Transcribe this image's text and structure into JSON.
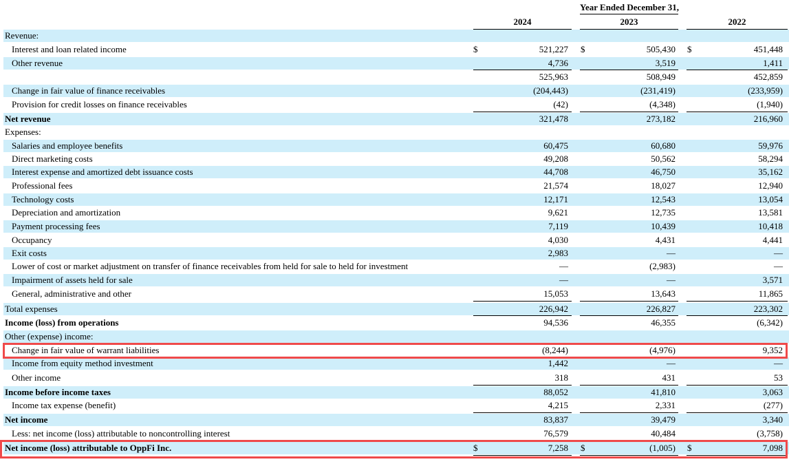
{
  "header": {
    "period_label": "Year Ended December 31,",
    "years": [
      "2024",
      "2023",
      "2022"
    ]
  },
  "currency_symbol": "$",
  "rows": [
    {
      "label": "Revenue:",
      "values": [
        "",
        "",
        ""
      ]
    },
    {
      "label": "Interest and loan related income",
      "values": [
        "521,227",
        "505,430",
        "451,448"
      ]
    },
    {
      "label": "Other revenue",
      "values": [
        "4,736",
        "3,519",
        "1,411"
      ]
    },
    {
      "label": "",
      "values": [
        "525,963",
        "508,949",
        "452,859"
      ]
    },
    {
      "label": "Change in fair value of finance receivables",
      "values": [
        "(204,443)",
        "(231,419)",
        "(233,959)"
      ]
    },
    {
      "label": "Provision for credit losses on finance receivables",
      "values": [
        "(42)",
        "(4,348)",
        "(1,940)"
      ]
    },
    {
      "label": "Net revenue",
      "values": [
        "321,478",
        "273,182",
        "216,960"
      ]
    },
    {
      "label": "Expenses:",
      "values": [
        "",
        "",
        ""
      ]
    },
    {
      "label": "Salaries and employee benefits",
      "values": [
        "60,475",
        "60,680",
        "59,976"
      ]
    },
    {
      "label": "Direct marketing costs",
      "values": [
        "49,208",
        "50,562",
        "58,294"
      ]
    },
    {
      "label": "Interest expense and amortized debt issuance costs",
      "values": [
        "44,708",
        "46,750",
        "35,162"
      ]
    },
    {
      "label": "Professional fees",
      "values": [
        "21,574",
        "18,027",
        "12,940"
      ]
    },
    {
      "label": "Technology costs",
      "values": [
        "12,171",
        "12,543",
        "13,054"
      ]
    },
    {
      "label": "Depreciation and amortization",
      "values": [
        "9,621",
        "12,735",
        "13,581"
      ]
    },
    {
      "label": "Payment processing fees",
      "values": [
        "7,119",
        "10,439",
        "10,418"
      ]
    },
    {
      "label": "Occupancy",
      "values": [
        "4,030",
        "4,431",
        "4,441"
      ]
    },
    {
      "label": "Exit costs",
      "values": [
        "2,983",
        "—",
        "—"
      ]
    },
    {
      "label": "Lower of cost or market adjustment on transfer of finance receivables from held for sale to held for investment",
      "values": [
        "—",
        "(2,983)",
        "—"
      ]
    },
    {
      "label": "Impairment of assets held for sale",
      "values": [
        "—",
        "—",
        "3,571"
      ]
    },
    {
      "label": "General, administrative and other",
      "values": [
        "15,053",
        "13,643",
        "11,865"
      ]
    },
    {
      "label": "Total expenses",
      "values": [
        "226,942",
        "226,827",
        "223,302"
      ]
    },
    {
      "label": "Income (loss) from operations",
      "values": [
        "94,536",
        "46,355",
        "(6,342)"
      ]
    },
    {
      "label": "Other (expense) income:",
      "values": [
        "",
        "",
        ""
      ]
    },
    {
      "label": "Change in fair value of warrant liabilities",
      "values": [
        "(8,244)",
        "(4,976)",
        "9,352"
      ]
    },
    {
      "label": "Income from equity method investment",
      "values": [
        "1,442",
        "—",
        "—"
      ]
    },
    {
      "label": "Other income",
      "values": [
        "318",
        "431",
        "53"
      ]
    },
    {
      "label": "Income before income taxes",
      "values": [
        "88,052",
        "41,810",
        "3,063"
      ]
    },
    {
      "label": "Income tax expense (benefit)",
      "values": [
        "4,215",
        "2,331",
        "(277)"
      ]
    },
    {
      "label": "Net income",
      "values": [
        "83,837",
        "39,479",
        "3,340"
      ]
    },
    {
      "label": "Less: net income (loss) attributable to noncontrolling interest",
      "values": [
        "76,579",
        "40,484",
        "(3,758)"
      ]
    },
    {
      "label": "Net income (loss) attributable to OppFi Inc.",
      "values": [
        "7,258",
        "(1,005)",
        "7,098"
      ]
    }
  ]
}
